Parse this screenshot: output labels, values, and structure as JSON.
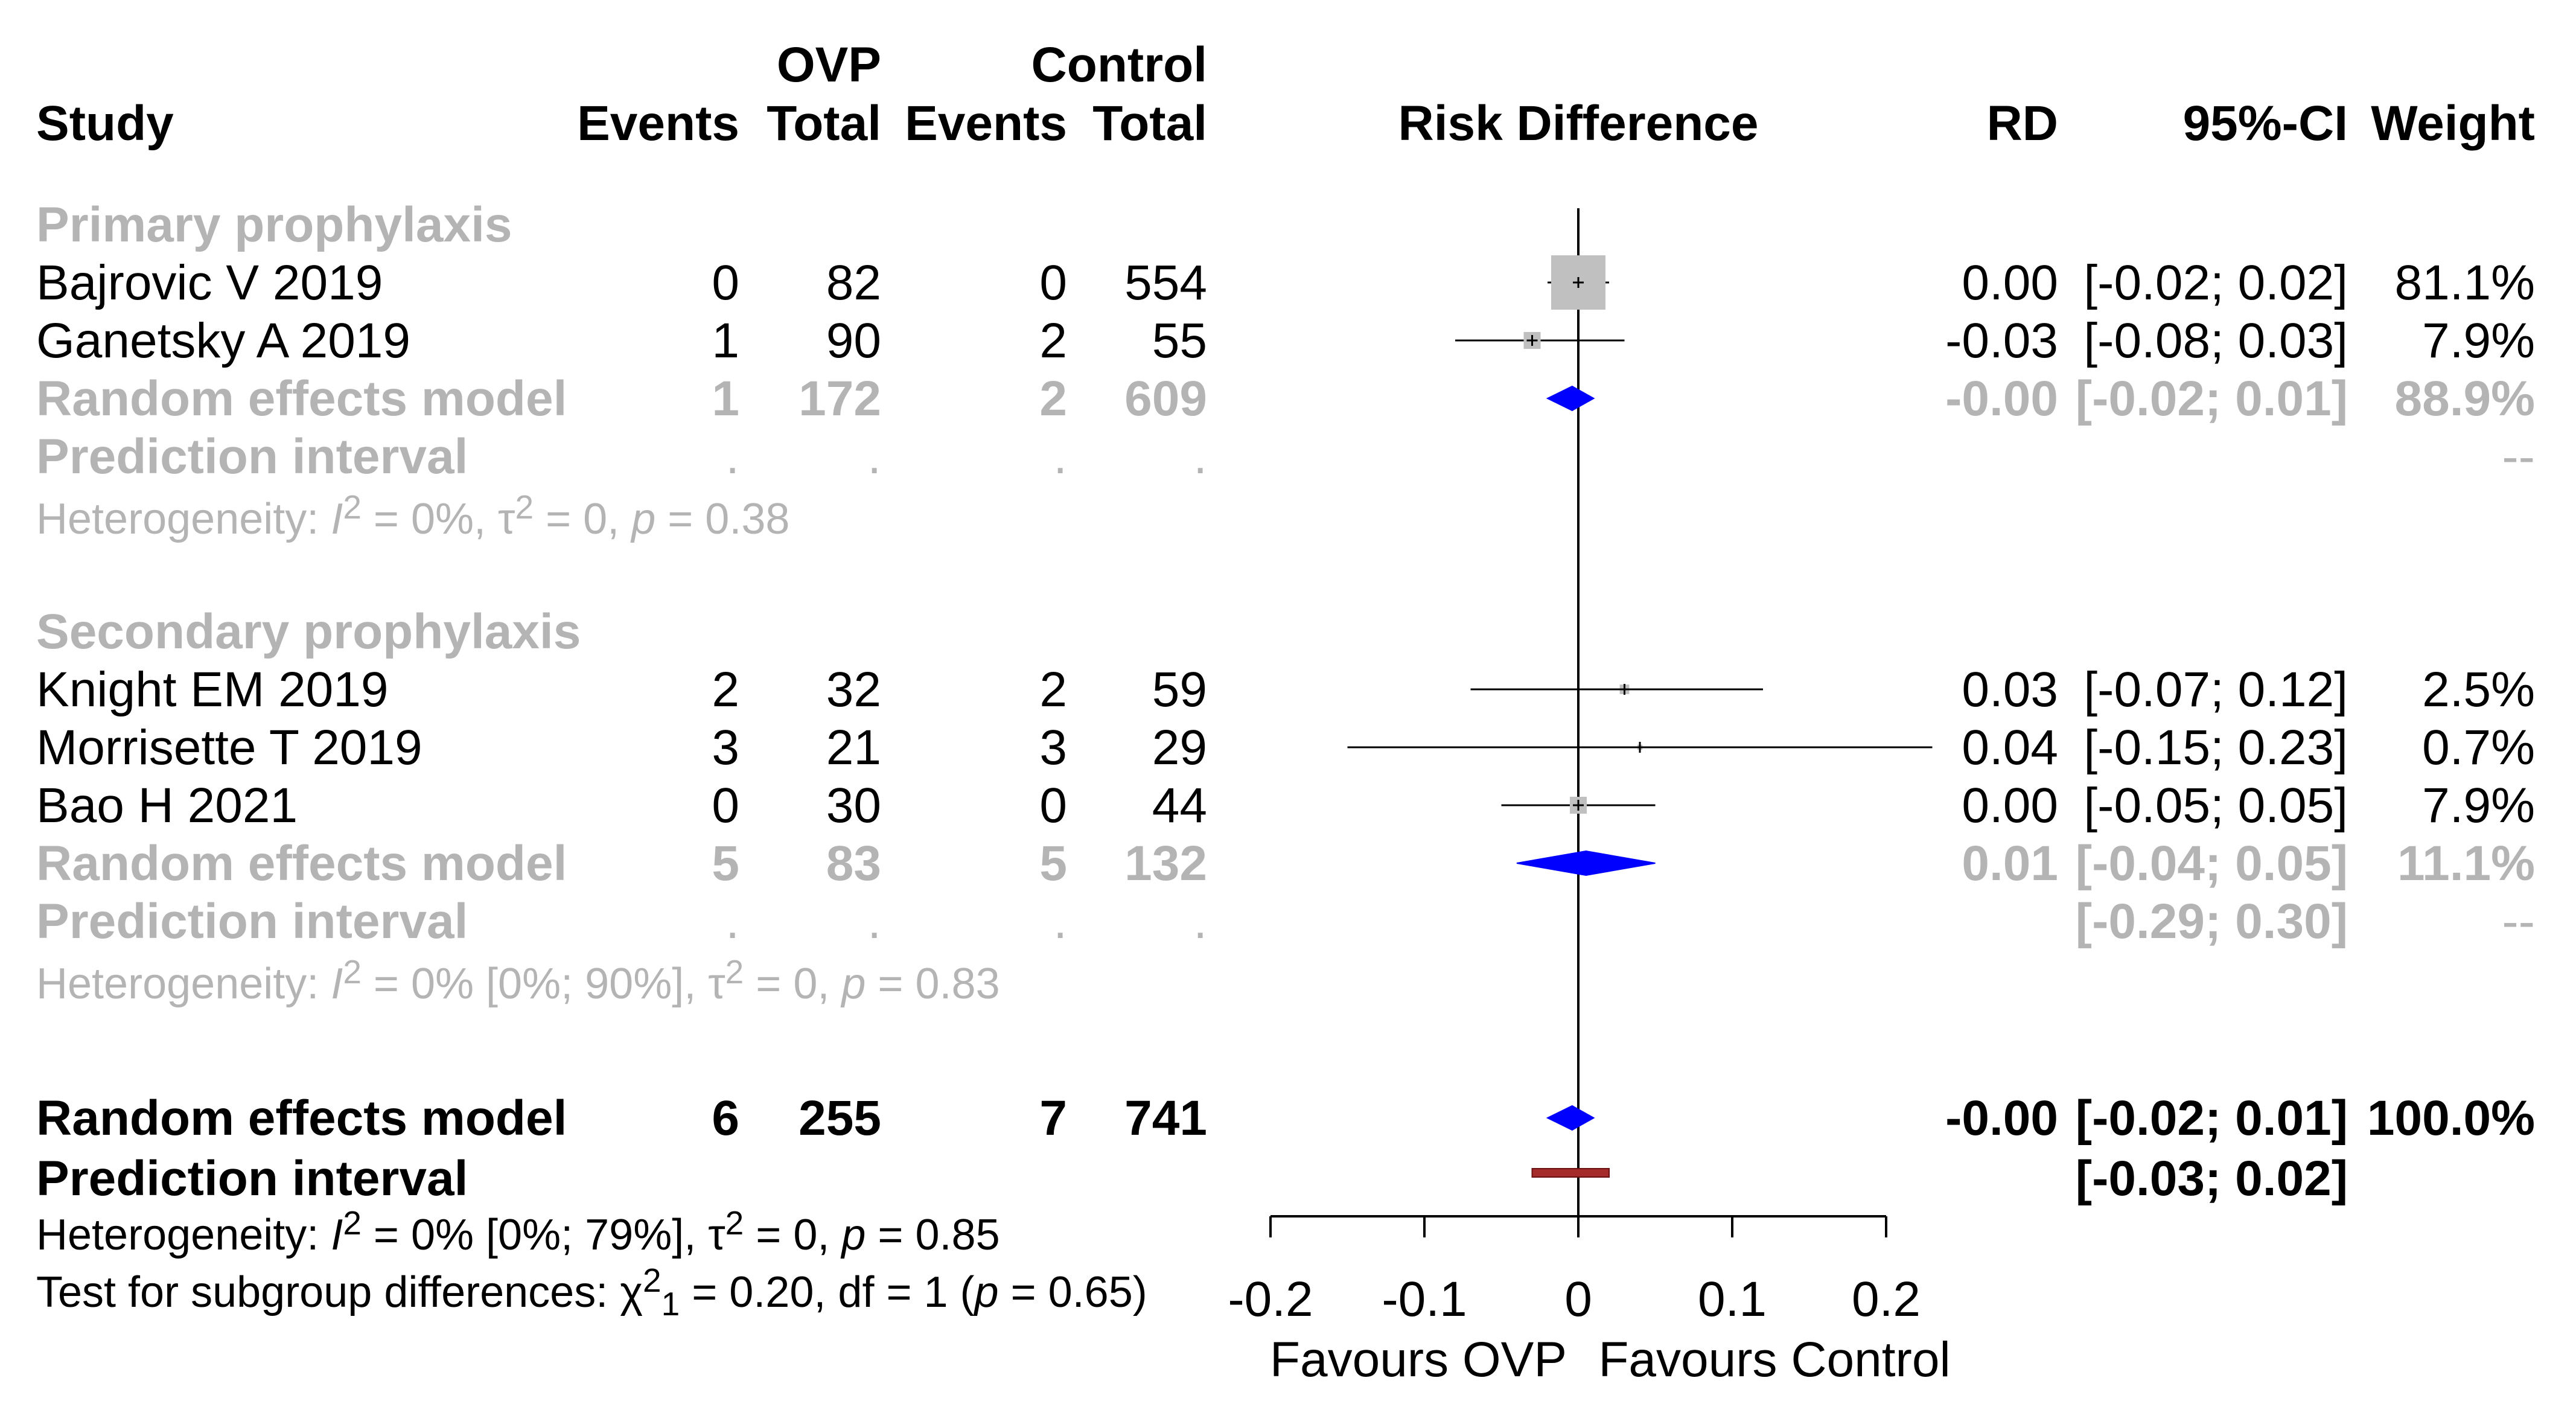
{
  "chart_data": {
    "type": "forest",
    "title": "",
    "effect_measure": "Risk Difference",
    "columns": {
      "group_ovp": "OVP",
      "group_control": "Control",
      "study": "Study",
      "events": "Events",
      "total": "Total",
      "events2": "Events",
      "total2": "Total",
      "plot_header": "Risk Difference",
      "rd": "RD",
      "ci": "95%-CI",
      "weight": "Weight"
    },
    "subgroups": [
      {
        "name": "Primary prophylaxis",
        "studies": [
          {
            "study": "Bajrovic V 2019",
            "e1": "0",
            "n1": "82",
            "e2": "0",
            "n2": "554",
            "rd": 0.0,
            "lo": -0.02,
            "hi": 0.02,
            "rd_text": "0.00",
            "ci_text": "[-0.02; 0.02]",
            "weight_text": "81.1%",
            "weight": 81.1
          },
          {
            "study": "Ganetsky A 2019",
            "e1": "1",
            "n1": "90",
            "e2": "2",
            "n2": "55",
            "rd": -0.03,
            "lo": -0.08,
            "hi": 0.03,
            "rd_text": "-0.03",
            "ci_text": "[-0.08; 0.03]",
            "weight_text": "7.9%",
            "weight": 7.9
          }
        ],
        "pooled": {
          "label": "Random effects model",
          "e1": "1",
          "n1": "172",
          "e2": "2",
          "n2": "609",
          "rd": -0.004,
          "lo": -0.02,
          "hi": 0.01,
          "rd_text": "-0.00",
          "ci_text": "[-0.02; 0.01]",
          "weight_text": "88.9%"
        },
        "prediction": {
          "label": "Prediction interval",
          "e1": ".",
          "n1": ".",
          "e2": ".",
          "n2": ".",
          "ci_text": "",
          "weight_text": "--"
        },
        "het_prefix": "Heterogeneity: ",
        "het_i2_sym": "I",
        "het_i2_sup": "2",
        "het_i2_val": " = 0%, ",
        "het_tau_sym": "τ",
        "het_tau_sup": "2",
        "het_tau_val": " = 0, ",
        "het_p_sym": "p",
        "het_p_val": " = 0.38"
      },
      {
        "name": "Secondary prophylaxis",
        "studies": [
          {
            "study": "Knight EM 2019",
            "e1": "2",
            "n1": "32",
            "e2": "2",
            "n2": "59",
            "rd": 0.03,
            "lo": -0.07,
            "hi": 0.12,
            "rd_text": "0.03",
            "ci_text": "[-0.07; 0.12]",
            "weight_text": "2.5%",
            "weight": 2.5
          },
          {
            "study": "Morrisette T 2019",
            "e1": "3",
            "n1": "21",
            "e2": "3",
            "n2": "29",
            "rd": 0.04,
            "lo": -0.15,
            "hi": 0.23,
            "rd_text": "0.04",
            "ci_text": "[-0.15; 0.23]",
            "weight_text": "0.7%",
            "weight": 0.7
          },
          {
            "study": "Bao H 2021",
            "e1": "0",
            "n1": "30",
            "e2": "0",
            "n2": "44",
            "rd": 0.0,
            "lo": -0.05,
            "hi": 0.05,
            "rd_text": "0.00",
            "ci_text": "[-0.05; 0.05]",
            "weight_text": "7.9%",
            "weight": 7.9
          }
        ],
        "pooled": {
          "label": "Random effects model",
          "e1": "5",
          "n1": "83",
          "e2": "5",
          "n2": "132",
          "rd": 0.005,
          "lo": -0.04,
          "hi": 0.05,
          "rd_text": "0.01",
          "ci_text": "[-0.04; 0.05]",
          "weight_text": "11.1%"
        },
        "prediction": {
          "label": "Prediction interval",
          "e1": ".",
          "n1": ".",
          "e2": ".",
          "n2": ".",
          "ci_text": "[-0.29; 0.30]",
          "weight_text": "--"
        },
        "het_prefix": "Heterogeneity: ",
        "het_i2_sym": "I",
        "het_i2_sup": "2",
        "het_i2_val": " = 0% [0%; 90%], ",
        "het_tau_sym": "τ",
        "het_tau_sup": "2",
        "het_tau_val": " = 0, ",
        "het_p_sym": "p",
        "het_p_val": " = 0.83"
      }
    ],
    "overall": {
      "pooled": {
        "label": "Random effects model",
        "e1": "6",
        "n1": "255",
        "e2": "7",
        "n2": "741",
        "rd": -0.004,
        "lo": -0.02,
        "hi": 0.01,
        "rd_text": "-0.00",
        "ci_text": "[-0.02; 0.01]",
        "weight_text": "100.0%"
      },
      "prediction": {
        "label": "Prediction interval",
        "lo": -0.03,
        "hi": 0.02,
        "ci_text": "[-0.03; 0.02]"
      },
      "het_prefix": "Heterogeneity: ",
      "het_i2_sym": "I",
      "het_i2_sup": "2",
      "het_i2_val": " = 0% [0%; 79%], ",
      "het_tau_sym": "τ",
      "het_tau_sup": "2",
      "het_tau_val": " = 0, ",
      "het_p_sym": "p",
      "het_p_val": " = 0.85",
      "subgroup_test_prefix": "Test for subgroup differences: ",
      "subgroup_test_chi": "χ",
      "subgroup_test_sup": "2",
      "subgroup_test_sub": "1",
      "subgroup_test_val": " = 0.20, df = 1 (",
      "subgroup_test_p": "p",
      "subgroup_test_pval": " = 0.65)"
    },
    "x_axis": {
      "range": [
        -0.2,
        0.2
      ],
      "ticks": [
        -0.2,
        -0.1,
        0,
        0.1,
        0.2
      ],
      "tick_labels": [
        "-0.2",
        "-0.1",
        "0",
        "0.1",
        "0.2"
      ],
      "label_left": "Favours OVP",
      "label_right": "Favours Control"
    },
    "colors": {
      "grey_text": "#b4b4b4",
      "study_square": "#c0c0c0",
      "diamond": "#0000ff",
      "prediction_bar": "#a52a2a"
    }
  }
}
